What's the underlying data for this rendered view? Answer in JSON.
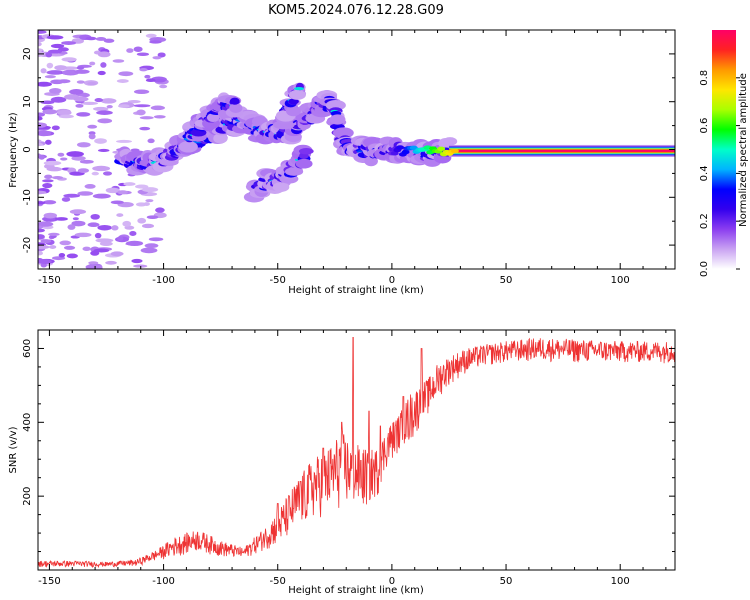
{
  "title": "KOM5.2024.076.12.28.G09",
  "chart_data": [
    {
      "type": "heatmap",
      "xlabel": "Height of straight line (km)",
      "ylabel": "Frequency (Hz)",
      "xlim": [
        -155,
        124
      ],
      "ylim": [
        -25,
        25
      ],
      "xticks": [
        -150,
        -100,
        -50,
        0,
        50,
        100
      ],
      "yticks": [
        -20,
        -10,
        0,
        10,
        20
      ],
      "grid": false,
      "colorbar": {
        "label": "Normalized spectral amplitude",
        "range": [
          0,
          1
        ],
        "ticks": [
          0.0,
          0.2,
          0.4,
          0.6,
          0.8
        ],
        "colormap": [
          "#ffffff",
          "#c9a2f2",
          "#8b3df0",
          "#3300ee",
          "#0000ff",
          "#00b4ff",
          "#00ffc8",
          "#00ff00",
          "#aaff00",
          "#ffe600",
          "#ff9900",
          "#ff2222",
          "#ff0066"
        ]
      },
      "ridges": [
        {
          "name": "main",
          "points": [
            [
              -118,
              -2
            ],
            [
              -108,
              -3
            ],
            [
              -100,
              -2
            ],
            [
              -90,
              1
            ],
            [
              -80,
              3
            ],
            [
              -72,
              5
            ],
            [
              -65,
              6
            ],
            [
              -58,
              4
            ],
            [
              -50,
              3.5
            ],
            [
              -42,
              4.5
            ],
            [
              -35,
              7
            ],
            [
              -30,
              9
            ],
            [
              -27,
              10
            ],
            [
              -24,
              6
            ],
            [
              -22,
              3
            ],
            [
              -20,
              1
            ],
            [
              -15,
              0
            ],
            [
              -8,
              -0.5
            ],
            [
              0,
              0
            ],
            [
              8,
              0
            ],
            [
              15,
              -1
            ],
            [
              25,
              -0.3
            ],
            [
              124,
              -0.3
            ]
          ]
        },
        {
          "name": "lower-branch",
          "points": [
            [
              -60,
              -9
            ],
            [
              -55,
              -7
            ],
            [
              -48,
              -6
            ],
            [
              -42,
              -3
            ],
            [
              -37,
              -1
            ]
          ]
        },
        {
          "name": "upper-branch",
          "points": [
            [
              -90,
              2
            ],
            [
              -82,
              6
            ],
            [
              -74,
              9
            ],
            [
              -68,
              10
            ]
          ]
        },
        {
          "name": "upper-branch-2",
          "points": [
            [
              -48,
              7
            ],
            [
              -44,
              10
            ],
            [
              -40,
              13
            ]
          ]
        }
      ],
      "steady_band": {
        "x_start": 25,
        "x_end": 124,
        "y": -0.3,
        "amplitude": 1.0
      }
    },
    {
      "type": "line",
      "xlabel": "Height of straight line (km)",
      "ylabel": "SNR (v/v)",
      "xlim": [
        -155,
        124
      ],
      "ylim": [
        0,
        650
      ],
      "xticks": [
        -150,
        -100,
        -50,
        0,
        50,
        100
      ],
      "yticks": [
        200,
        400,
        600
      ],
      "grid": false,
      "series": [
        {
          "color": "#ee3333",
          "envelope": [
            [
              -155,
              8,
              25
            ],
            [
              -140,
              8,
              25
            ],
            [
              -125,
              8,
              22
            ],
            [
              -112,
              10,
              28
            ],
            [
              -103,
              25,
              55
            ],
            [
              -95,
              35,
              90
            ],
            [
              -85,
              50,
              110
            ],
            [
              -75,
              35,
              80
            ],
            [
              -65,
              30,
              60
            ],
            [
              -55,
              55,
              120
            ],
            [
              -48,
              70,
              180
            ],
            [
              -42,
              100,
              240
            ],
            [
              -35,
              130,
              300
            ],
            [
              -28,
              150,
              330
            ],
            [
              -22,
              160,
              380
            ],
            [
              -18,
              170,
              350
            ],
            [
              -12,
              160,
              330
            ],
            [
              -6,
              200,
              330
            ],
            [
              -2,
              280,
              390
            ],
            [
              3,
              320,
              420
            ],
            [
              8,
              340,
              480
            ],
            [
              12,
              380,
              500
            ],
            [
              16,
              420,
              520
            ],
            [
              20,
              460,
              560
            ],
            [
              25,
              500,
              580
            ],
            [
              32,
              530,
              600
            ],
            [
              40,
              550,
              610
            ],
            [
              50,
              560,
              620
            ],
            [
              65,
              565,
              630
            ],
            [
              80,
              560,
              625
            ],
            [
              100,
              560,
              620
            ],
            [
              124,
              560,
              620
            ]
          ],
          "spikes": [
            [
              -50,
              180
            ],
            [
              -40,
              240
            ],
            [
              -30,
              330
            ],
            [
              -22,
              400
            ],
            [
              -17,
              630
            ],
            [
              -10,
              430
            ],
            [
              -5,
              390
            ],
            [
              5,
              470
            ],
            [
              13,
              600
            ]
          ]
        }
      ]
    }
  ]
}
